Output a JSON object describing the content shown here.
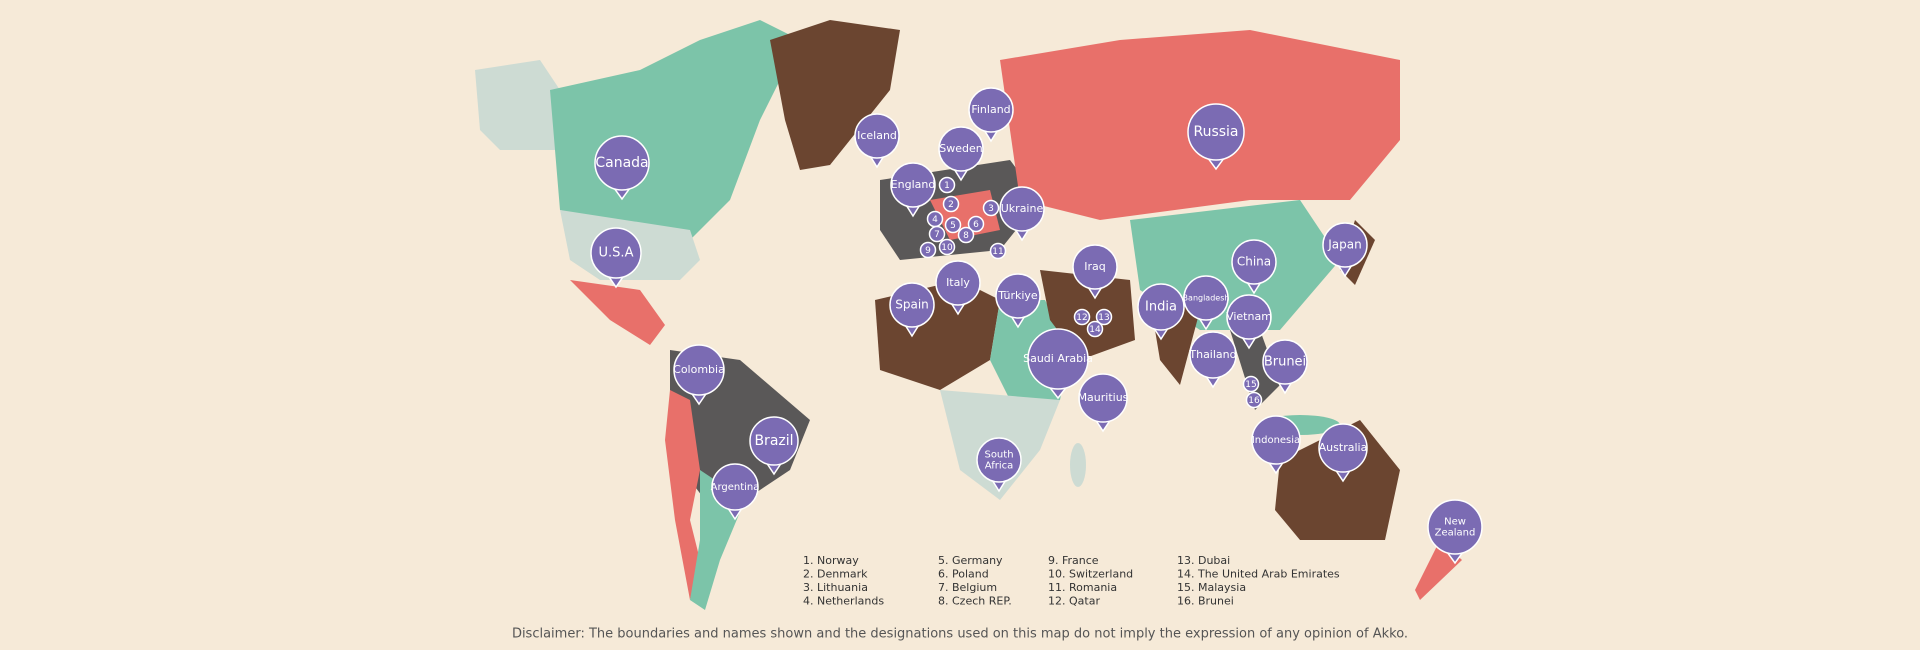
{
  "pins": [
    "Canada",
    "U.S.A",
    "Colombia",
    "Brazil",
    "Argentina",
    "Iceland",
    "England",
    "Sweden",
    "Finland",
    "Ukraine",
    "Russia",
    "Iraq",
    "Türkiye",
    "Italy",
    "Spain",
    "Saudi Arabia",
    "India",
    "Bangladesh",
    "China",
    "Japan",
    "Vietnam",
    "Thailand",
    "Brunei",
    "Mauritius",
    "South Africa",
    "Indonesia",
    "Australia",
    "New Zealand"
  ],
  "markers": [
    "1",
    "2",
    "3",
    "4",
    "5",
    "6",
    "7",
    "8",
    "9",
    "10",
    "11",
    "12",
    "13",
    "14",
    "15",
    "16"
  ],
  "legend": [
    "1. Norway",
    "2. Denmark",
    "3. Lithuania",
    "4. Netherlands",
    "5. Germany",
    "6. Poland",
    "7. Belgium",
    "8. Czech REP.",
    "9. France",
    "10. Switzerland",
    "11. Romania",
    "12. Qatar",
    "13. Dubai",
    "14. The United Arab Emirates",
    "15. Malaysia",
    "16. Brunei"
  ],
  "disclaimer": "Disclaimer: The boundaries and names shown and the designations used on this map do not imply the expression of any opinion of Akko."
}
